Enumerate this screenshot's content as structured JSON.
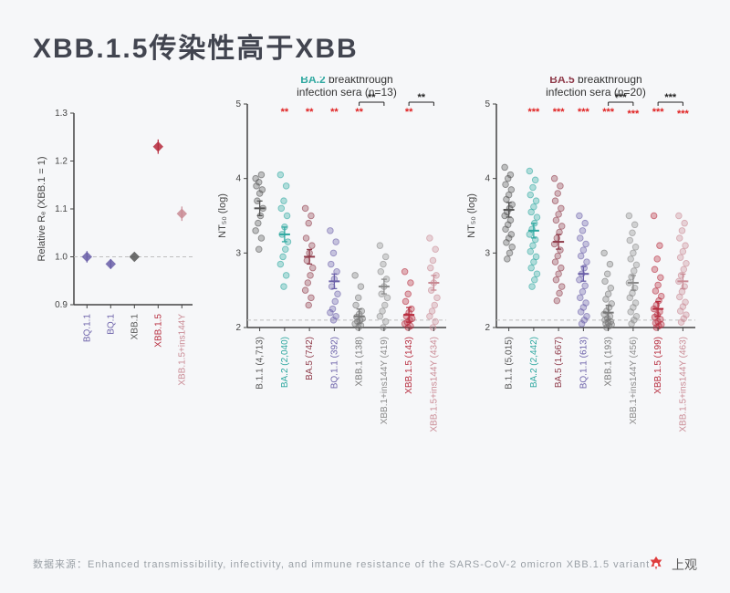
{
  "title": "XBB.1.5传染性高于XBB",
  "footer": "数据来源：Enhanced transmissibility, infectivity, and immune resistance of the SARS-CoV-2 omicron XBB.1.5 variant",
  "logo_text": "上观",
  "colors": {
    "bg": "#f6f7f9",
    "text": "#424550",
    "axis": "#444444",
    "grid_dash": "#bfbfbf",
    "teal": "#2fa8a0",
    "maroon": "#8f3b4a",
    "red": "#e02323",
    "star_red": "#e02020",
    "star_black": "#222222"
  },
  "panelA": {
    "ylabel": "Relative Rₑ (XBB.1 = 1)",
    "ylim": [
      0.9,
      1.3
    ],
    "yticks": [
      0.9,
      1.0,
      1.1,
      1.2,
      1.3
    ],
    "ref_line": 1.0,
    "label_fontsize": 10,
    "tick_fontsize": 10,
    "categories": [
      {
        "label": "BQ.1.1",
        "color": "#6a5fa8",
        "mean": 1.0,
        "spread": 0.012
      },
      {
        "label": "BQ.1",
        "color": "#6a5fa8",
        "mean": 0.985,
        "spread": 0.01
      },
      {
        "label": "XBB.1",
        "color": "#555555",
        "mean": 1.0,
        "spread": 0.0
      },
      {
        "label": "XBB.1.5",
        "color": "#b62a3c",
        "mean": 1.23,
        "spread": 0.015
      },
      {
        "label": "XBB.1.5+ins144Y",
        "color": "#c98a94",
        "mean": 1.09,
        "spread": 0.015
      }
    ]
  },
  "panelB": {
    "title_lead": "BA.2",
    "title_rest": " breakthrough infection sera (n=13)",
    "title_color": "#2fa8a0",
    "ylabel": "NT₅₀ (log)",
    "ylim": [
      2,
      5
    ],
    "yticks": [
      2,
      3,
      4,
      5
    ],
    "ref_line": 2.1,
    "groups": [
      {
        "label": "B.1.1 (4,713)",
        "color": "#555555",
        "mean": 3.6,
        "pts": [
          4.0,
          4.05,
          3.95,
          3.9,
          3.85,
          3.8,
          3.7,
          3.6,
          3.5,
          3.4,
          3.3,
          3.2,
          3.05
        ],
        "star": null,
        "star_color": null,
        "bracket": null
      },
      {
        "label": "BA.2 (2,040)",
        "color": "#2fa8a0",
        "mean": 3.25,
        "pts": [
          4.05,
          3.9,
          3.7,
          3.6,
          3.5,
          3.35,
          3.25,
          3.15,
          3.05,
          2.95,
          2.85,
          2.7,
          2.55
        ],
        "star": "**",
        "star_color": "red",
        "bracket": null
      },
      {
        "label": "BA.5 (742)",
        "color": "#8f3b4a",
        "mean": 2.95,
        "pts": [
          3.6,
          3.5,
          3.4,
          3.2,
          3.1,
          3.0,
          2.9,
          2.8,
          2.7,
          2.6,
          2.5,
          2.4,
          2.3
        ],
        "star": "**",
        "star_color": "red",
        "bracket": null
      },
      {
        "label": "BQ.1.1 (392)",
        "color": "#6a5fa8",
        "mean": 2.62,
        "pts": [
          3.3,
          3.15,
          3.0,
          2.85,
          2.75,
          2.65,
          2.55,
          2.45,
          2.35,
          2.25,
          2.2,
          2.15,
          2.1
        ],
        "star": "**",
        "star_color": "red",
        "bracket": null
      },
      {
        "label": "XBB.1 (138)",
        "color": "#777777",
        "mean": 2.15,
        "pts": [
          2.7,
          2.55,
          2.4,
          2.3,
          2.22,
          2.18,
          2.14,
          2.12,
          2.1,
          2.08,
          2.05,
          2.03,
          2.0
        ],
        "star": "**",
        "star_color": "red",
        "bracket": null
      },
      {
        "label": "XBB.1+ins144Y (419)",
        "color": "#8a8a8a",
        "mean": 2.55,
        "pts": [
          3.1,
          2.95,
          2.85,
          2.75,
          2.65,
          2.55,
          2.45,
          2.4,
          2.3,
          2.22,
          2.15,
          2.08,
          2.0
        ],
        "star": "**",
        "star_color": "black",
        "bracket": "left"
      },
      {
        "label": "XBB.1.5 (143)",
        "color": "#b62a3c",
        "mean": 2.17,
        "pts": [
          2.75,
          2.6,
          2.45,
          2.35,
          2.25,
          2.2,
          2.15,
          2.12,
          2.1,
          2.07,
          2.05,
          2.02,
          2.0
        ],
        "star": "**",
        "star_color": "red",
        "bracket": null
      },
      {
        "label": "XBB.1.5+ins144Y (434)",
        "color": "#c98a94",
        "mean": 2.6,
        "pts": [
          3.2,
          3.05,
          2.9,
          2.8,
          2.7,
          2.6,
          2.5,
          2.4,
          2.3,
          2.22,
          2.15,
          2.08,
          2.0
        ],
        "star": "**",
        "star_color": "black",
        "bracket": "left"
      }
    ]
  },
  "panelC": {
    "title_lead": "BA.5",
    "title_rest": " breakthrough infection sera (n=20)",
    "title_color": "#8f3b4a",
    "ylabel": "NT₅₀ (log)",
    "ylim": [
      2,
      5
    ],
    "yticks": [
      2,
      3,
      4,
      5
    ],
    "ref_line": 2.1,
    "groups": [
      {
        "label": "B.1.1 (5,015)",
        "color": "#555555",
        "mean": 3.58,
        "pts": [
          4.15,
          4.05,
          4.0,
          3.92,
          3.85,
          3.78,
          3.72,
          3.65,
          3.6,
          3.55,
          3.5,
          3.44,
          3.38,
          3.32,
          3.25,
          3.2,
          3.14,
          3.08,
          3.0,
          2.92
        ],
        "star": null,
        "star_color": null,
        "bracket": null
      },
      {
        "label": "BA.2 (2,442)",
        "color": "#2fa8a0",
        "mean": 3.3,
        "pts": [
          4.1,
          3.98,
          3.88,
          3.78,
          3.7,
          3.62,
          3.55,
          3.48,
          3.4,
          3.32,
          3.25,
          3.18,
          3.1,
          3.02,
          2.95,
          2.88,
          2.8,
          2.72,
          2.64,
          2.55
        ],
        "star": "***",
        "star_color": "red",
        "bracket": null
      },
      {
        "label": "BA.5 (1,667)",
        "color": "#8f3b4a",
        "mean": 3.15,
        "pts": [
          4.0,
          3.9,
          3.8,
          3.7,
          3.6,
          3.52,
          3.44,
          3.36,
          3.28,
          3.2,
          3.12,
          3.04,
          2.96,
          2.88,
          2.8,
          2.72,
          2.64,
          2.55,
          2.46,
          2.36
        ],
        "star": "***",
        "star_color": "red",
        "bracket": null
      },
      {
        "label": "BQ.1.1 (613)",
        "color": "#6a5fa8",
        "mean": 2.72,
        "pts": [
          3.5,
          3.4,
          3.3,
          3.2,
          3.12,
          3.04,
          2.96,
          2.88,
          2.8,
          2.72,
          2.64,
          2.56,
          2.48,
          2.4,
          2.33,
          2.27,
          2.21,
          2.15,
          2.1,
          2.05
        ],
        "star": "***",
        "star_color": "red",
        "bracket": null
      },
      {
        "label": "XBB.1 (193)",
        "color": "#777777",
        "mean": 2.2,
        "pts": [
          3.0,
          2.85,
          2.72,
          2.62,
          2.53,
          2.45,
          2.38,
          2.32,
          2.27,
          2.22,
          2.18,
          2.15,
          2.12,
          2.1,
          2.08,
          2.06,
          2.05,
          2.04,
          2.02,
          2.0
        ],
        "star": "***",
        "star_color": "red",
        "bracket": null
      },
      {
        "label": "XBB.1+ins144Y (456)",
        "color": "#8a8a8a",
        "mean": 2.6,
        "pts": [
          3.5,
          3.38,
          3.27,
          3.17,
          3.08,
          3.0,
          2.92,
          2.84,
          2.76,
          2.68,
          2.6,
          2.53,
          2.46,
          2.4,
          2.33,
          2.27,
          2.21,
          2.15,
          2.1,
          2.05
        ],
        "star": "***",
        "star_color": "black",
        "bracket": "left",
        "inner_star": "***",
        "inner_star_color": "red"
      },
      {
        "label": "XBB.1.5 (199)",
        "color": "#b62a3c",
        "mean": 2.25,
        "pts": [
          3.5,
          3.1,
          2.92,
          2.78,
          2.67,
          2.57,
          2.49,
          2.42,
          2.36,
          2.3,
          2.25,
          2.21,
          2.17,
          2.14,
          2.11,
          2.08,
          2.06,
          2.04,
          2.02,
          2.0
        ],
        "star": "***",
        "star_color": "red",
        "bracket": null
      },
      {
        "label": "XBB.1.5+ins144Y (463)",
        "color": "#c98a94",
        "mean": 2.62,
        "pts": [
          3.5,
          3.4,
          3.3,
          3.2,
          3.1,
          3.02,
          2.94,
          2.86,
          2.78,
          2.7,
          2.62,
          2.55,
          2.48,
          2.41,
          2.34,
          2.28,
          2.22,
          2.17,
          2.12,
          2.07
        ],
        "star": "***",
        "star_color": "black",
        "bracket": "left",
        "inner_star": "***",
        "inner_star_color": "red"
      }
    ]
  }
}
